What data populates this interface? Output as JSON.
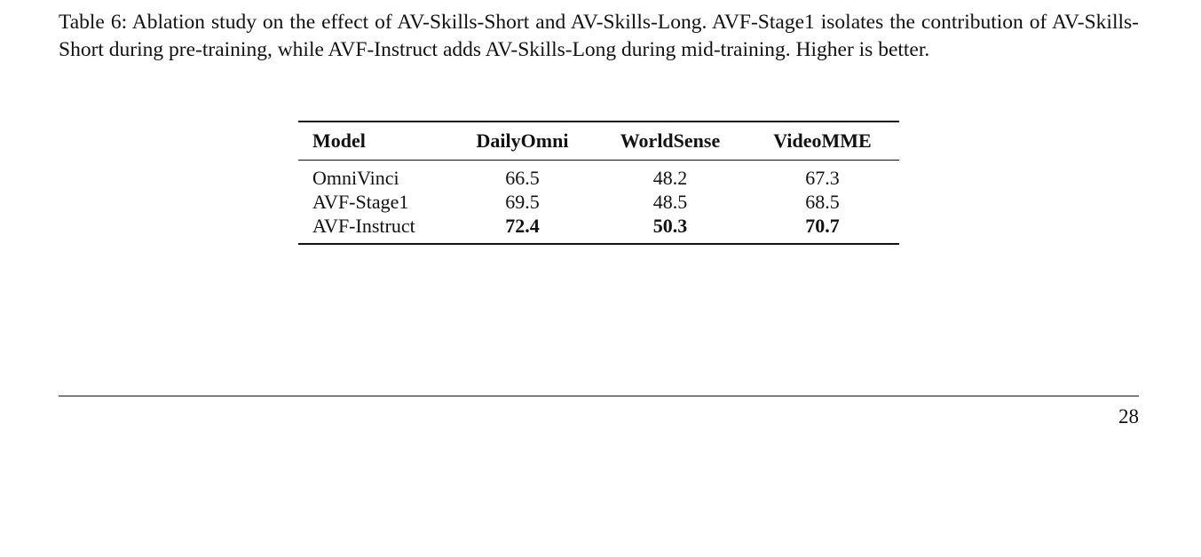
{
  "caption": "Table 6: Ablation study on the effect of AV-Skills-Short and AV-Skills-Long. AVF-Stage1 isolates the contribution of AV-Skills-Short during pre-training, while AVF-Instruct adds AV-Skills-Long during mid-training. Higher is better.",
  "table": {
    "header": [
      "Model",
      "DailyOmni",
      "WorldSense",
      "VideoMME"
    ],
    "rows": [
      [
        "OmniVinci",
        66.5,
        48.2,
        67.3
      ],
      [
        "AVF-Stage1",
        69.5,
        48.5,
        68.5
      ],
      [
        "AVF-Instruct",
        72.4,
        50.3,
        70.7
      ]
    ]
  },
  "page_number": 28
}
